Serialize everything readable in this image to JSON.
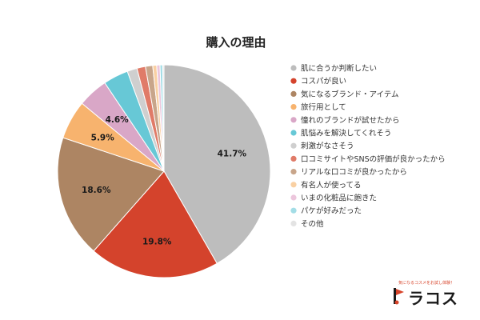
{
  "chart_data": {
    "type": "pie",
    "title": "購入の理由",
    "legend_position": "right",
    "slices": [
      {
        "label": "肌に合うか判断したい",
        "value": 41.7,
        "color": "#bdbdbd",
        "show_label": true
      },
      {
        "label": "コスパが良い",
        "value": 19.8,
        "color": "#d4432c",
        "show_label": true
      },
      {
        "label": "気になるブランド・アイテム",
        "value": 18.6,
        "color": "#ad8563",
        "show_label": true
      },
      {
        "label": "旅行用として",
        "value": 5.9,
        "color": "#f7b36e",
        "show_label": true
      },
      {
        "label": "憧れのブランドが試せたから",
        "value": 4.6,
        "color": "#d9a7c7",
        "show_label": true
      },
      {
        "label": "肌悩みを解決してくれそう",
        "value": 3.8,
        "color": "#67c8d6",
        "show_label": false
      },
      {
        "label": "刺激がなさそう",
        "value": 1.5,
        "color": "#cfcfcf",
        "show_label": false
      },
      {
        "label": "口コミサイトやSNSの評価が良かったから",
        "value": 1.3,
        "color": "#e07b68",
        "show_label": false
      },
      {
        "label": "リアルな口コミが良かったから",
        "value": 1.1,
        "color": "#c8a58a",
        "show_label": false
      },
      {
        "label": "有名人が使ってる",
        "value": 0.6,
        "color": "#f9d0a3",
        "show_label": false
      },
      {
        "label": "いまの化粧品に飽きた",
        "value": 0.5,
        "color": "#ecc6dc",
        "show_label": false
      },
      {
        "label": "パケが好みだった",
        "value": 0.4,
        "color": "#a3dde6",
        "show_label": false
      },
      {
        "label": "その他",
        "value": 0.2,
        "color": "#e3e3e3",
        "show_label": false
      }
    ]
  },
  "brand": {
    "tagline": "気になるコスメをお試し体験！",
    "name": "ラコス",
    "accent_color": "#d7442a"
  }
}
